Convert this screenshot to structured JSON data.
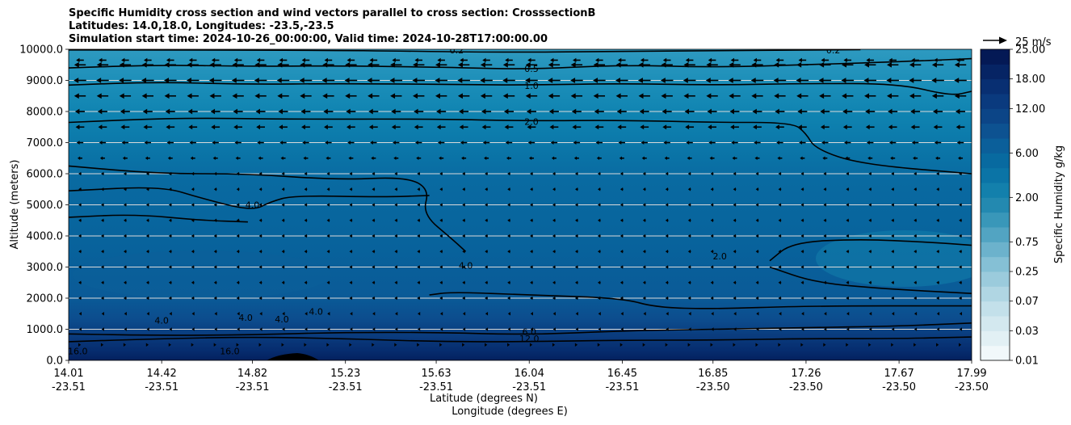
{
  "chart_data": {
    "type": "heatmap",
    "title_lines": [
      "Specific Humidity cross section and wind vectors parallel to cross section: CrosssectionB",
      "Latitudes: 14.0,18.0, Longitudes: -23.5,-23.5",
      "Simulation start time: 2024-10-26_00:00:00, Valid time: 2024-10-28T17:00:00.00"
    ],
    "ylabel": "Altitude (meters)",
    "xlabel_lines": [
      "Latitude (degrees N)",
      "Longitude (degrees E)"
    ],
    "ylim": [
      0,
      10000
    ],
    "y_ticks": [
      "0.0",
      "1000.0",
      "2000.0",
      "3000.0",
      "4000.0",
      "5000.0",
      "6000.0",
      "7000.0",
      "8000.0",
      "9000.0",
      "10000.0"
    ],
    "x_ticks": [
      {
        "lat": "14.01",
        "lon": "-23.51"
      },
      {
        "lat": "14.42",
        "lon": "-23.51"
      },
      {
        "lat": "14.82",
        "lon": "-23.51"
      },
      {
        "lat": "15.23",
        "lon": "-23.51"
      },
      {
        "lat": "15.63",
        "lon": "-23.51"
      },
      {
        "lat": "16.04",
        "lon": "-23.51"
      },
      {
        "lat": "16.45",
        "lon": "-23.51"
      },
      {
        "lat": "16.85",
        "lon": "-23.50"
      },
      {
        "lat": "17.26",
        "lon": "-23.50"
      },
      {
        "lat": "17.67",
        "lon": "-23.50"
      },
      {
        "lat": "17.99",
        "lon": "-23.50"
      }
    ],
    "grid": "horizontal",
    "colorbar": {
      "label": "Specific Humidity g/kg",
      "levels": [
        0.01,
        0.02,
        0.03,
        0.05,
        0.07,
        0.1,
        0.25,
        0.5,
        0.75,
        1.0,
        1.5,
        2.0,
        3.0,
        4.0,
        6.0,
        8.0,
        10.0,
        12.0,
        15.0,
        18.0,
        21.0,
        25.0
      ],
      "tick_labels": [
        "0.01",
        "0.03",
        "0.07",
        "0.25",
        "0.75",
        "2.00",
        "6.00",
        "12.00",
        "18.00",
        "25.00"
      ],
      "colors": [
        "#f1f8fa",
        "#e2f0f4",
        "#d3e8ef",
        "#c3e0ea",
        "#b0d6e3",
        "#9bcbdc",
        "#85c0d5",
        "#6cb2cc",
        "#52a4c2",
        "#3997b9",
        "#2389b0",
        "#1380ac",
        "#0b74a6",
        "#086aa0",
        "#0b5f9a",
        "#0d5291",
        "#0c4587",
        "#0a3a7e",
        "#082f72",
        "#062464",
        "#041955"
      ]
    },
    "quiver_key": {
      "label": "25 m/s",
      "u": 25
    },
    "wind_rows": [
      {
        "z": 9650,
        "u": -8
      },
      {
        "z": 9500,
        "u": -12
      },
      {
        "z": 9000,
        "u": -13
      },
      {
        "z": 8500,
        "u": -12
      },
      {
        "z": 8000,
        "u": -10
      },
      {
        "z": 7500,
        "u": -9
      },
      {
        "z": 7000,
        "u": -7
      },
      {
        "z": 6500,
        "u": -5
      },
      {
        "z": 6000,
        "u": -3
      },
      {
        "z": 5500,
        "u": -3
      },
      {
        "z": 5000,
        "u": -3
      },
      {
        "z": 4500,
        "u": -3
      },
      {
        "z": 4000,
        "u": -3
      },
      {
        "z": 3500,
        "u": -3
      },
      {
        "z": 3000,
        "u": -3
      },
      {
        "z": 2500,
        "u": -3
      },
      {
        "z": 2000,
        "u": -3
      },
      {
        "z": 1500,
        "u": -2
      },
      {
        "z": 1000,
        "u": -2
      },
      {
        "z": 500,
        "u": 2
      }
    ],
    "contours": [
      {
        "level": "0.2",
        "points": [
          [
            14.01,
            9980
          ],
          [
            15.2,
            9970
          ],
          [
            15.9,
            9900
          ],
          [
            16.4,
            9930
          ],
          [
            17.0,
            9960
          ],
          [
            17.5,
            9990
          ]
        ]
      },
      {
        "level": "0.5",
        "points": [
          [
            14.01,
            9400
          ],
          [
            14.4,
            9500
          ],
          [
            14.8,
            9450
          ],
          [
            15.2,
            9470
          ],
          [
            15.7,
            9420
          ],
          [
            16.04,
            9350
          ],
          [
            16.45,
            9500
          ],
          [
            16.85,
            9420
          ],
          [
            17.26,
            9500
          ],
          [
            17.67,
            9600
          ],
          [
            17.99,
            9700
          ]
        ]
      },
      {
        "level": "1.0",
        "points": [
          [
            14.01,
            8850
          ],
          [
            14.4,
            8950
          ],
          [
            14.8,
            8870
          ],
          [
            15.2,
            8900
          ],
          [
            15.7,
            8870
          ],
          [
            16.04,
            8850
          ],
          [
            16.45,
            8900
          ],
          [
            16.85,
            8850
          ],
          [
            17.26,
            8900
          ],
          [
            17.67,
            8900
          ],
          [
            17.9,
            8500
          ],
          [
            17.99,
            8650
          ]
        ]
      },
      {
        "level": "2.0",
        "points": [
          [
            14.01,
            7650
          ],
          [
            14.5,
            7800
          ],
          [
            15.0,
            7750
          ],
          [
            15.6,
            7760
          ],
          [
            16.04,
            7700
          ],
          [
            16.45,
            7720
          ],
          [
            16.85,
            7650
          ],
          [
            17.2,
            7650
          ],
          [
            17.26,
            7300
          ],
          [
            17.3,
            6800
          ],
          [
            17.5,
            6300
          ],
          [
            17.99,
            6000
          ]
        ]
      },
      {
        "level": "2.0",
        "points": [
          [
            14.01,
            6250
          ],
          [
            14.4,
            6000
          ],
          [
            14.8,
            6000
          ],
          [
            15.2,
            5800
          ],
          [
            15.5,
            5900
          ],
          [
            15.6,
            5500
          ],
          [
            15.57,
            4700
          ],
          [
            15.7,
            3900
          ],
          [
            15.76,
            3500
          ]
        ]
      },
      {
        "level": "4.0",
        "points": [
          [
            14.01,
            5450
          ],
          [
            14.42,
            5600
          ],
          [
            14.6,
            5200
          ],
          [
            14.82,
            4800
          ],
          [
            14.9,
            5100
          ],
          [
            15.0,
            5300
          ],
          [
            15.4,
            5250
          ],
          [
            15.6,
            5300
          ]
        ]
      },
      {
        "level": "4.0",
        "points": [
          [
            14.01,
            4600
          ],
          [
            14.3,
            4700
          ],
          [
            14.6,
            4500
          ],
          [
            14.8,
            4450
          ]
        ]
      },
      {
        "level": "2.0",
        "points": [
          [
            17.1,
            3200
          ],
          [
            17.2,
            3800
          ],
          [
            17.5,
            3900
          ],
          [
            17.8,
            3800
          ],
          [
            17.99,
            3700
          ]
        ]
      },
      {
        "level": "2.0",
        "points": [
          [
            17.1,
            3000
          ],
          [
            17.3,
            2500
          ],
          [
            17.6,
            2300
          ],
          [
            17.99,
            2150
          ]
        ]
      },
      {
        "level": "4.0",
        "points": [
          [
            15.6,
            2100
          ],
          [
            15.7,
            2200
          ],
          [
            16.04,
            2100
          ],
          [
            16.45,
            2000
          ],
          [
            16.6,
            1700
          ],
          [
            16.85,
            1650
          ],
          [
            17.26,
            1750
          ],
          [
            17.99,
            1750
          ]
        ]
      },
      {
        "level": "6.0",
        "points": [
          [
            14.01,
            850
          ],
          [
            14.4,
            800
          ],
          [
            14.82,
            820
          ],
          [
            15.2,
            900
          ],
          [
            15.63,
            900
          ],
          [
            16.04,
            820
          ],
          [
            16.45,
            950
          ],
          [
            16.85,
            1000
          ],
          [
            17.26,
            1050
          ],
          [
            17.67,
            1100
          ],
          [
            17.99,
            1200
          ]
        ]
      },
      {
        "level": "12.0",
        "points": [
          [
            14.01,
            600
          ],
          [
            14.42,
            700
          ],
          [
            14.82,
            750
          ],
          [
            15.23,
            700
          ],
          [
            15.63,
            600
          ],
          [
            16.04,
            600
          ],
          [
            16.45,
            650
          ],
          [
            16.85,
            650
          ],
          [
            17.26,
            700
          ],
          [
            17.67,
            700
          ],
          [
            17.99,
            750
          ]
        ]
      }
    ],
    "contour_labels": [
      {
        "text": "0.2",
        "x": 15.72,
        "y": 9980
      },
      {
        "text": "0.5",
        "x": 16.05,
        "y": 9380
      },
      {
        "text": "1.0",
        "x": 16.05,
        "y": 8830
      },
      {
        "text": "2.0",
        "x": 16.05,
        "y": 7670
      },
      {
        "text": "0.2",
        "x": 17.38,
        "y": 9980
      },
      {
        "text": "4.0",
        "x": 14.82,
        "y": 5000
      },
      {
        "text": "4.0",
        "x": 15.76,
        "y": 3050
      },
      {
        "text": "2.0",
        "x": 16.88,
        "y": 3350
      },
      {
        "text": "4.0",
        "x": 14.42,
        "y": 1280
      },
      {
        "text": "4.0",
        "x": 14.79,
        "y": 1380
      },
      {
        "text": "4.0",
        "x": 14.95,
        "y": 1320
      },
      {
        "text": "4.0",
        "x": 15.1,
        "y": 1570
      },
      {
        "text": "6.0",
        "x": 16.04,
        "y": 920
      },
      {
        "text": "12.0",
        "x": 16.04,
        "y": 700
      },
      {
        "text": "16.0",
        "x": 14.05,
        "y": 300
      },
      {
        "text": "16.0",
        "x": 14.72,
        "y": 300
      }
    ]
  }
}
